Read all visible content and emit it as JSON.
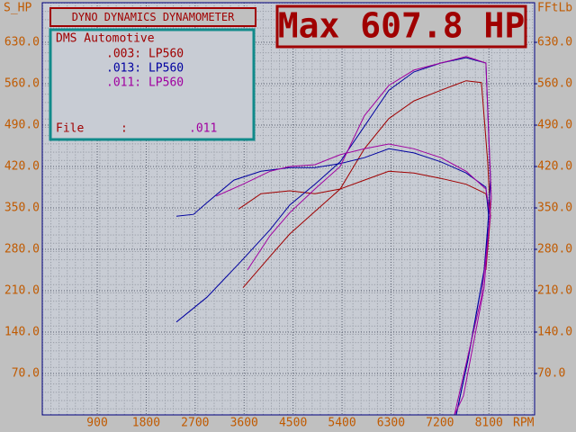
{
  "chart_data": {
    "type": "line",
    "header": "DYNO DYNAMICS DYNAMOMETER",
    "title": "Max 607.8 HP",
    "legend_title": "DMS Automotive",
    "file": {
      "label": "File",
      "separator": ":",
      "value": ".011"
    },
    "x_label": "RPM",
    "y_label": "S_HP",
    "y2_label": "FFtLb",
    "xlim": [
      -110,
      8940
    ],
    "ylim": [
      0,
      697
    ],
    "y2lim": [
      0,
      697
    ],
    "xticks": [
      900,
      1800,
      2700,
      3600,
      4500,
      5400,
      6300,
      7200,
      8100
    ],
    "yticks": [
      {
        "value": 70,
        "label": "70.0"
      },
      {
        "value": 140,
        "label": "140.0"
      },
      {
        "value": 210,
        "label": "210.0"
      },
      {
        "value": 280,
        "label": "280.0"
      },
      {
        "value": 350,
        "label": "350.0"
      },
      {
        "value": 420,
        "label": "420.0"
      },
      {
        "value": 490,
        "label": "490.0"
      },
      {
        "value": 560,
        "label": "560.0"
      },
      {
        "value": 630,
        "label": "630.0"
      }
    ],
    "y2ticks": [
      {
        "value": 70,
        "label": "70.0"
      },
      {
        "value": 140,
        "label": "140.0"
      },
      {
        "value": 210,
        "label": "210.0"
      },
      {
        "value": 280,
        "label": "280.0"
      },
      {
        "value": 350,
        "label": "350.0"
      },
      {
        "value": 420,
        "label": "420.0"
      },
      {
        "value": 490,
        "label": "490.0"
      },
      {
        "value": 560,
        "label": "560.0"
      },
      {
        "value": 630,
        "label": "630.0"
      }
    ],
    "grid": true,
    "series": [
      {
        "name": ".003: LP560",
        "color": "#a00000",
        "power": {
          "x": [
            3579,
            4076,
            4439,
            4902,
            5366,
            5812,
            6259,
            6722,
            7218,
            7681,
            7962,
            8078,
            8128,
            8045
          ],
          "values": [
            215,
            268,
            306,
            344,
            382,
            450,
            501,
            531,
            549,
            565,
            562,
            428,
            336,
            245
          ]
        },
        "torque": {
          "x": [
            3496,
            3910,
            4439,
            4902,
            5366,
            5812,
            6259,
            6722,
            7218,
            7681,
            8045,
            8128
          ],
          "values": [
            348,
            374,
            379,
            374,
            382,
            397,
            412,
            409,
            400,
            390,
            374,
            336
          ]
        }
      },
      {
        "name": ".013: LP560",
        "color": "#0000a0",
        "power": {
          "x": [
            2356,
            2917,
            3546,
            4076,
            4439,
            4902,
            5366,
            5812,
            6259,
            6722,
            7218,
            7681,
            8045,
            8128,
            8045,
            7714,
            7499
          ],
          "values": [
            157,
            199,
            260,
            313,
            355,
            390,
            428,
            488,
            549,
            580,
            595,
            604,
            595,
            397,
            260,
            93,
            0
          ]
        },
        "torque": {
          "x": [
            2356,
            2670,
            2917,
            3413,
            3910,
            4439,
            4902,
            5366,
            5812,
            6259,
            6722,
            7218,
            7681,
            8045,
            8095,
            8012,
            7714,
            7499
          ],
          "values": [
            336,
            339,
            359,
            397,
            412,
            418,
            418,
            425,
            435,
            450,
            443,
            428,
            409,
            385,
            336,
            245,
            93,
            0
          ]
        }
      },
      {
        "name": ".011: LP560",
        "color": "#a000a0",
        "power": {
          "x": [
            3661,
            4076,
            4439,
            4902,
            5366,
            5812,
            6259,
            6722,
            7218,
            7681,
            8045,
            8145,
            8012,
            7631,
            7466
          ],
          "values": [
            245,
            303,
            342,
            382,
            420,
            506,
            557,
            583,
            595,
            606,
            595,
            367,
            215,
            32,
            0
          ]
        },
        "torque": {
          "x": [
            3086,
            3579,
            4076,
            4439,
            4902,
            5366,
            5812,
            6259,
            6722,
            7218,
            7681,
            8045,
            8128,
            7962,
            7466
          ],
          "values": [
            370,
            390,
            412,
            420,
            423,
            440,
            450,
            458,
            450,
            435,
            412,
            382,
            336,
            199,
            0
          ]
        }
      }
    ]
  }
}
